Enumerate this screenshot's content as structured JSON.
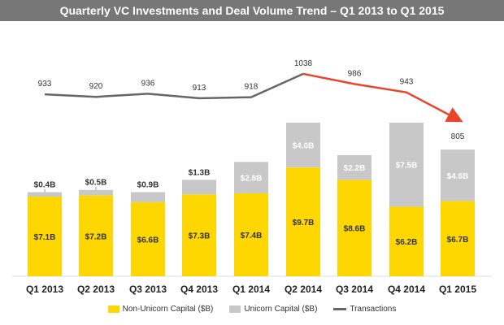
{
  "colors": {
    "title_bg": "#777777",
    "non_unicorn": "#FFD700",
    "unicorn": "#C8C8C8",
    "transactions": "#666666",
    "transactions_decline": "#E8452C"
  },
  "chart_data": {
    "type": "bar",
    "title": "Quarterly VC Investments and Deal Volume Trend – Q1 2013 to Q1 2015",
    "categories": [
      "Q1 2013",
      "Q2 2013",
      "Q3 2013",
      "Q4 2013",
      "Q1 2014",
      "Q2 2014",
      "Q3 2014",
      "Q4 2014",
      "Q1 2015"
    ],
    "stacked": true,
    "series": [
      {
        "name": "Non-Unicorn Capital ($B)",
        "kind": "bar",
        "values": [
          7.1,
          7.2,
          6.6,
          7.3,
          7.4,
          9.7,
          8.6,
          6.2,
          6.7
        ],
        "labels": [
          "$7.1B",
          "$7.2B",
          "$6.6B",
          "$7.3B",
          "$7.4B",
          "$9.7B",
          "$8.6B",
          "$6.2B",
          "$6.7B"
        ]
      },
      {
        "name": "Unicorn Capital ($B)",
        "kind": "bar",
        "values": [
          0.4,
          0.5,
          0.9,
          1.3,
          2.8,
          4.0,
          2.2,
          7.5,
          4.6
        ],
        "labels": [
          "$0.4B",
          "$0.5B",
          "$0.9B",
          "$1.3B",
          "$2.8B",
          "$4.0B",
          "$2.2B",
          "$7.5B",
          "$4.6B"
        ]
      },
      {
        "name": "Transactions",
        "kind": "line",
        "values": [
          933,
          920,
          936,
          913,
          918,
          1038,
          986,
          943,
          805
        ],
        "labels": [
          "933",
          "920",
          "936",
          "913",
          "918",
          "1038",
          "986",
          "943",
          "805"
        ]
      }
    ],
    "ylim": [
      0,
      16
    ],
    "transactions_ylim": [
      0,
      1200
    ],
    "grid": false,
    "legend_position": "bottom"
  },
  "legend": {
    "non_unicorn": "Non-Unicorn Capital ($B)",
    "unicorn": "Unicorn Capital ($B)",
    "transactions": "Transactions"
  }
}
